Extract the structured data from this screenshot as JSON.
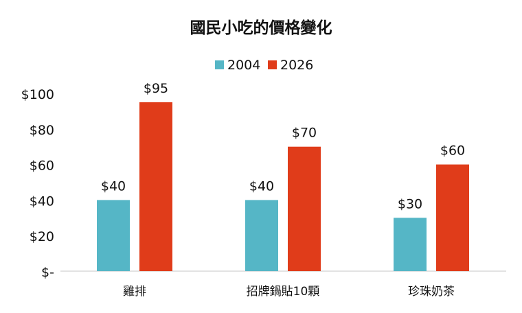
{
  "chart_data": {
    "type": "bar",
    "title": "國民小吃的價格變化",
    "categories": [
      "雞排",
      "招牌鍋貼10顆",
      "珍珠奶茶"
    ],
    "series": [
      {
        "name": "2004",
        "values": [
          40,
          40,
          30
        ],
        "color": "#55b6c6"
      },
      {
        "name": "2026",
        "values": [
          95,
          70,
          60
        ],
        "color": "#e03c1a"
      }
    ],
    "data_labels": [
      [
        "$40",
        "$40",
        "$30"
      ],
      [
        "$95",
        "$70",
        "$60"
      ]
    ],
    "ylim": [
      0,
      100
    ],
    "yticks": [
      0,
      20,
      40,
      60,
      80,
      100
    ],
    "ytick_labels": [
      "$-",
      "$20",
      "$40",
      "$60",
      "$80",
      "$100"
    ],
    "legend_position": "top",
    "grid": false,
    "xlabel": "",
    "ylabel": ""
  }
}
